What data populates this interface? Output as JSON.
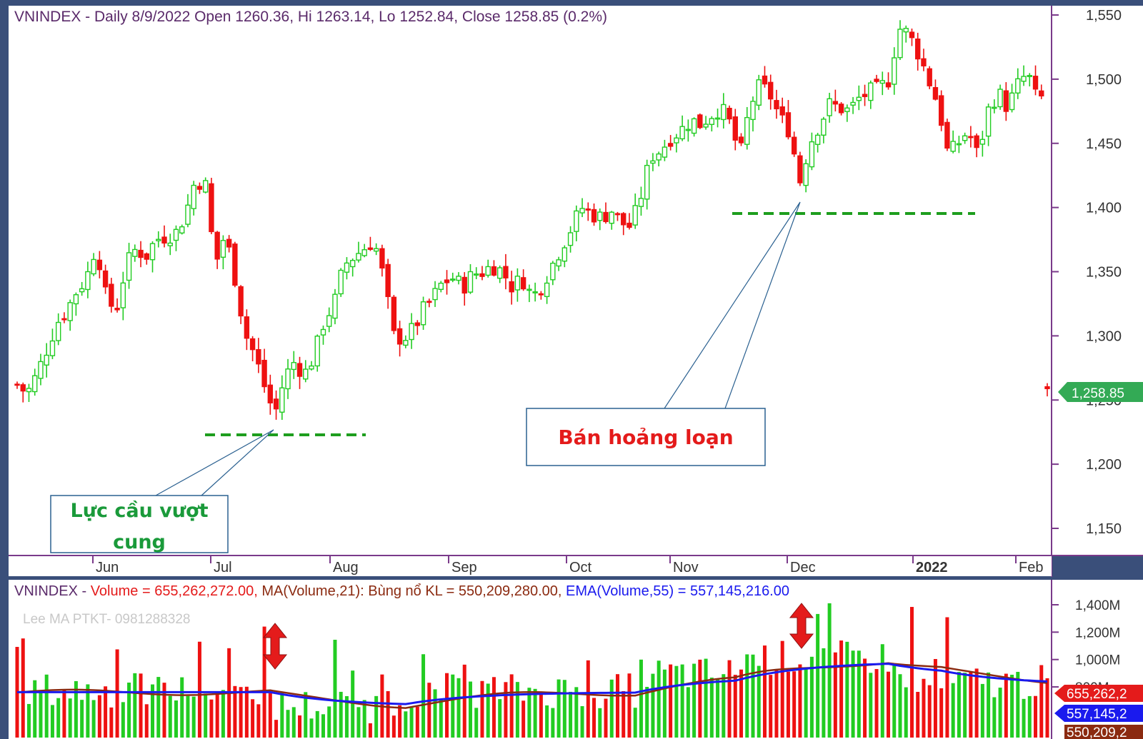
{
  "price_panel": {
    "header": "VNINDEX - Daily 8/9/2022 Open 1260.36, Hi 1263.14, Lo 1252.84, Close 1258.85 (0.2%)",
    "last_price_tag": "1,258.85",
    "annotations": {
      "left_box": [
        "Lực cầu vượt",
        "cung"
      ],
      "right_box": "Bán hoảng loạn"
    }
  },
  "volume_panel": {
    "legend": {
      "ticker": "VNINDEX - ",
      "volume": "Volume = 655,262,272.00, ",
      "ma": "MA(Volume,21): Bùng nổ KL = 550,209,280.00, ",
      "ema": "EMA(Volume,55) = 557,145,216.00"
    },
    "watermark": "Lee MA PTKT- 0981288328",
    "value_tags": [
      "655,262,2",
      "557,145,2",
      "550,209,2"
    ]
  },
  "colors": {
    "up": "#22cc22",
    "down": "#ee1111",
    "ma_line": "#8b2a10",
    "ema_line": "#1a1aee",
    "axis": "#7a3a8a",
    "panel_bg": "#ffffff",
    "frame_bg": "#3a4f7a",
    "annotation_green": "#1a9a3a",
    "annotation_red": "#e41b1b",
    "dash_green": "#1e9e1e"
  },
  "chart_data": [
    {
      "type": "candlestick",
      "title": "VNINDEX - Daily 8/9/2022 Open 1260.36, Hi 1263.14, Lo 1252.84, Close 1258.85 (0.2%)",
      "x_tick_labels": [
        "Jun",
        "Jul",
        "Aug",
        "Sep",
        "Oct",
        "Nov",
        "Dec",
        "2022",
        "Feb"
      ],
      "y_tick_labels": [
        "1,550",
        "1,500",
        "1,450",
        "1,400",
        "1,350",
        "1,300",
        "1,250",
        "1,200",
        "1,150"
      ],
      "y_ticks": [
        1550,
        1500,
        1450,
        1400,
        1350,
        1300,
        1250,
        1200,
        1150
      ],
      "ylim": [
        1120,
        1555
      ],
      "close_path": [
        1262,
        1255,
        1270,
        1290,
        1310,
        1320,
        1335,
        1345,
        1372,
        1328,
        1320,
        1355,
        1368,
        1362,
        1375,
        1378,
        1380,
        1395,
        1422,
        1418,
        1355,
        1380,
        1345,
        1302,
        1285,
        1260,
        1238,
        1268,
        1280,
        1270,
        1285,
        1312,
        1325,
        1355,
        1362,
        1368,
        1375,
        1345,
        1300,
        1298,
        1305,
        1320,
        1330,
        1342,
        1345,
        1338,
        1348,
        1350,
        1355,
        1350,
        1338,
        1345,
        1330,
        1340,
        1355,
        1370,
        1385,
        1400,
        1395,
        1392,
        1398,
        1388,
        1385,
        1410,
        1440,
        1445,
        1455,
        1460,
        1468,
        1465,
        1472,
        1478,
        1465,
        1440,
        1480,
        1495,
        1488,
        1470,
        1460,
        1420,
        1450,
        1465,
        1480,
        1478,
        1475,
        1485,
        1490,
        1492,
        1500,
        1540,
        1535,
        1520,
        1500,
        1480,
        1440,
        1450,
        1460,
        1440,
        1475,
        1490,
        1478,
        1495,
        1505,
        1482,
        1490
      ],
      "last": {
        "open": 1260.36,
        "high": 1263.14,
        "low": 1252.84,
        "close": 1258.85
      },
      "annotations": [
        {
          "text": "Lực cầu vượt cung",
          "support_level": 1230
        },
        {
          "text": "Bán hoảng loạn",
          "support_level": 1395
        }
      ]
    },
    {
      "type": "bar",
      "title": "Volume",
      "y_tick_labels": [
        "1,400M",
        "1,200M",
        "1,000M",
        "800M"
      ],
      "y_ticks": [
        1400,
        1200,
        1000,
        800
      ],
      "ylim": [
        430,
        1530
      ],
      "series": [
        {
          "name": "Volume",
          "last": 655262272.0
        },
        {
          "name": "MA(Volume,21): Bùng nổ KL",
          "last": 550209280.0
        },
        {
          "name": "EMA(Volume,55)",
          "last": 557145216.0
        }
      ]
    }
  ]
}
